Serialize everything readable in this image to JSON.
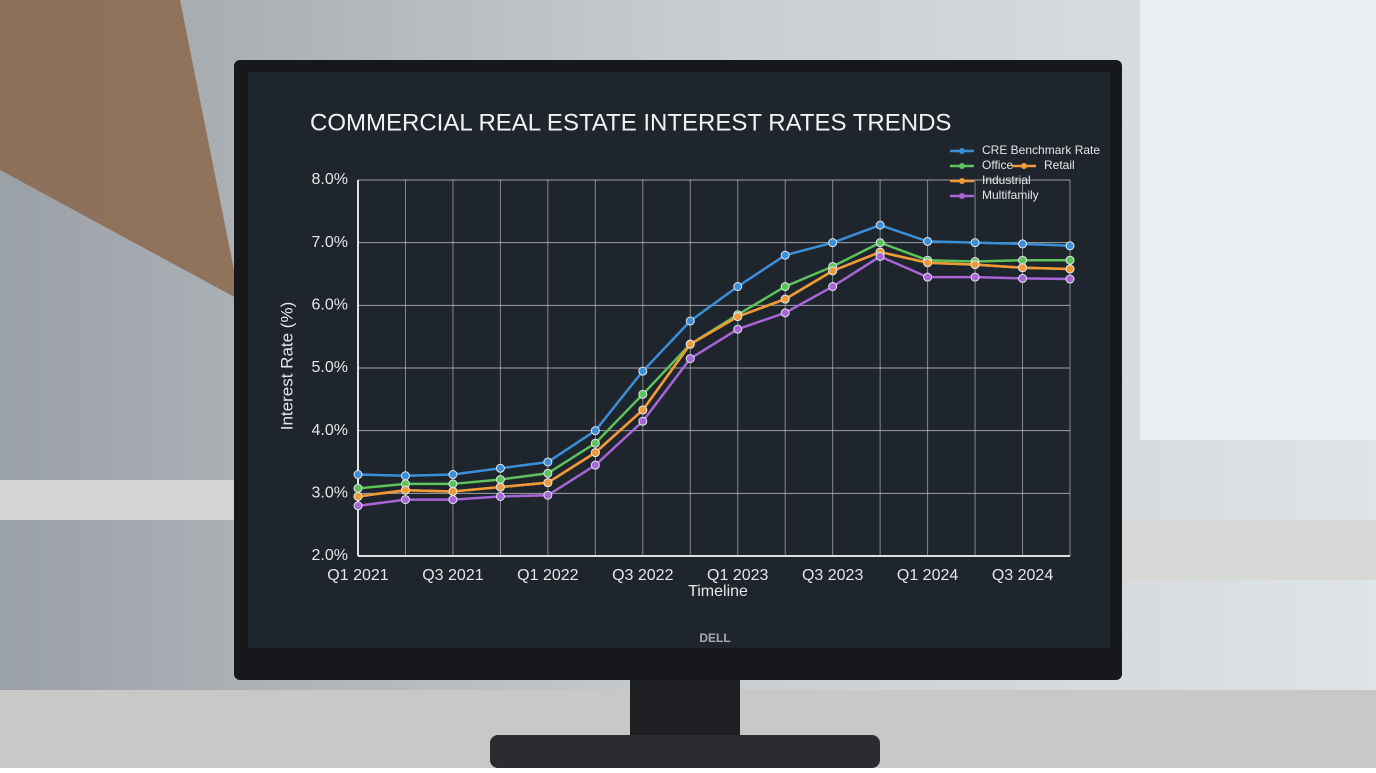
{
  "chart_data": {
    "type": "line",
    "title": "COMMERCIAL REAL ESTATE INTEREST RATES TRENDS",
    "x_label": "Timeline",
    "y_label": "Interest Rate (%)",
    "categories": [
      "Q1 2021",
      null,
      "Q3 2021",
      null,
      "Q1 2022",
      null,
      "Q3 2022",
      null,
      "Q1 2023",
      null,
      "Q3 2023",
      null,
      "Q1 2024",
      null,
      "Q3 2024",
      null
    ],
    "series": [
      {
        "name": "CRE Benchmark Rate",
        "color": "#3b8fd9",
        "values": [
          3.3,
          3.28,
          3.3,
          3.4,
          3.5,
          4.0,
          4.95,
          5.75,
          6.3,
          6.8,
          7.0,
          7.28,
          7.02,
          7.0,
          6.98,
          6.95
        ]
      },
      {
        "name": "Office",
        "color": "#5cc25a",
        "values": [
          3.08,
          3.15,
          3.15,
          3.22,
          3.32,
          3.8,
          4.58,
          5.38,
          5.85,
          6.3,
          6.62,
          7.0,
          6.72,
          6.7,
          6.72,
          6.72
        ]
      },
      {
        "name": "Retail",
        "color": "#f39c3a",
        "values": [
          2.95,
          3.05,
          3.03,
          3.1,
          3.17,
          3.65,
          4.33,
          5.38,
          5.82,
          6.1,
          6.55,
          6.85,
          6.68,
          6.65,
          6.6,
          6.58
        ]
      },
      {
        "name": "Industrial",
        "color": "#ef9a36",
        "values": [
          2.95,
          3.05,
          3.03,
          3.1,
          3.17,
          3.65,
          4.33,
          5.38,
          5.82,
          6.1,
          6.55,
          6.85,
          6.68,
          6.65,
          6.6,
          6.58
        ]
      },
      {
        "name": "Multifamily",
        "color": "#a865d6",
        "values": [
          2.8,
          2.9,
          2.9,
          2.95,
          2.97,
          3.45,
          4.15,
          5.15,
          5.62,
          5.88,
          6.3,
          6.78,
          6.45,
          6.45,
          6.43,
          6.42
        ]
      }
    ],
    "ylim": [
      2,
      8
    ],
    "yticks": [
      {
        "value": 2,
        "label": "2.0%"
      },
      {
        "value": 3,
        "label": "3.0%"
      },
      {
        "value": 4,
        "label": "4.0%"
      },
      {
        "value": 5,
        "label": "5.0%"
      },
      {
        "value": 6,
        "label": "6.0%"
      },
      {
        "value": 7,
        "label": "7.0%"
      },
      {
        "value": 8,
        "label": "8.0%"
      }
    ],
    "grid": true,
    "legend": "upper right"
  },
  "monitor_brand": "DELL"
}
